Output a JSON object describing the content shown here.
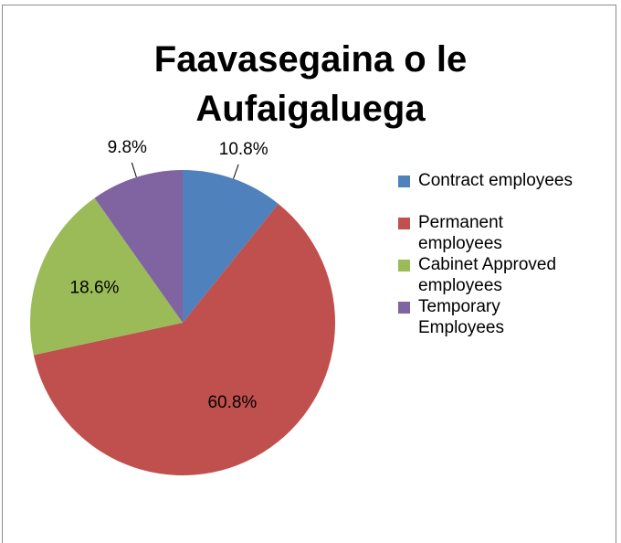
{
  "chart_data": {
    "type": "pie",
    "title": "Faavasegaina o le Aufaigaluega",
    "categories": [
      "Contract employees",
      "Permanent employees",
      "Cabinet Approved employees",
      "Temporary Employees"
    ],
    "values": [
      10.8,
      60.8,
      18.6,
      9.8
    ],
    "value_labels": [
      "10.8%",
      "60.8%",
      "18.6%",
      "9.8%"
    ],
    "colors": [
      "#4f81bd",
      "#c0504d",
      "#9bbb59",
      "#8064a2"
    ],
    "legend": "right"
  }
}
